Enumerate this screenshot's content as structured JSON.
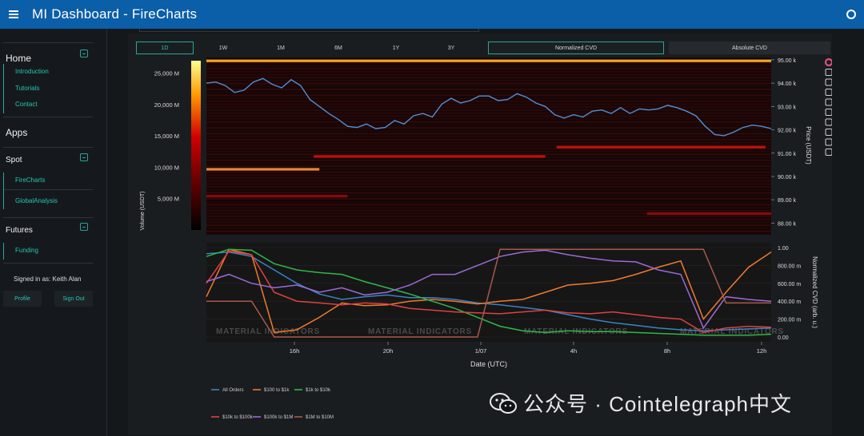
{
  "app": {
    "title": "MI Dashboard  -  FireCharts"
  },
  "sidebar": {
    "sections": [
      {
        "title": "Home",
        "items": [
          "Introduction",
          "Tutorials",
          "Contact"
        ]
      },
      {
        "title": "Apps",
        "items": []
      },
      {
        "title": "Spot",
        "items": [
          "FireCharts",
          "GlobalAnalysis"
        ]
      },
      {
        "title": "Futures",
        "items": [
          "Funding"
        ]
      }
    ],
    "signed_in": "Signed in as: Keith Alan",
    "profile_label": "Profile",
    "signout_label": "Sign Out"
  },
  "toolbar": {
    "ranges": [
      "1D",
      "1W",
      "1M",
      "6M",
      "1Y",
      "3Y"
    ],
    "active_range": "1D",
    "modes": [
      "Normalized CVD",
      "Absolute CVD"
    ],
    "active_mode": "Normalized CVD"
  },
  "chart_data": [
    {
      "type": "heatmap",
      "title": "",
      "colorbar": {
        "label": "Volume (USDT)",
        "ticks": [
          "25,000 M",
          "20,000 M",
          "15,000 M",
          "10,000 M",
          "5,000 M"
        ],
        "range": [
          0,
          27000
        ]
      },
      "ylabel": "Price (USDT)",
      "y_ticks": [
        "95.00 k",
        "94.00 k",
        "93.00 k",
        "92.00 k",
        "91.00 k",
        "90.00 k",
        "89.00 k",
        "88.00 k"
      ],
      "ylim": [
        87500,
        95100
      ],
      "walls": [
        {
          "price": 94950,
          "volume": 24000
        },
        {
          "price": 90300,
          "volume": 20000
        },
        {
          "price": 90850,
          "volume": 9000
        },
        {
          "price": 91250,
          "volume": 9000
        },
        {
          "price": 89150,
          "volume": 6000
        },
        {
          "price": 88400,
          "volume": 5000
        }
      ],
      "price_series": {
        "name": "",
        "color": "#4f8fd6",
        "values": [
          94000,
          94050,
          93900,
          93600,
          93700,
          94050,
          94200,
          93950,
          93800,
          94150,
          93900,
          93300,
          93000,
          92700,
          92450,
          92150,
          92100,
          92250,
          92050,
          92100,
          92400,
          92250,
          92600,
          92700,
          92550,
          93100,
          93350,
          93150,
          93250,
          93450,
          93450,
          93250,
          93300,
          93550,
          93400,
          93150,
          93000,
          92650,
          92500,
          92650,
          92550,
          92800,
          92850,
          92700,
          92950,
          92700,
          92900,
          92850,
          92900,
          93050,
          92950,
          92800,
          92600,
          92150,
          91800,
          91750,
          91900,
          92100,
          92200,
          92150,
          92050
        ]
      }
    },
    {
      "type": "line",
      "xlabel": "Date (UTC)",
      "ylabel": "Normalized CVD (arb. u.)",
      "x_ticks": [
        "16h",
        "20h",
        "1/07",
        "4h",
        "8h",
        "12h"
      ],
      "y_ticks": [
        "1.00",
        "800.00 m",
        "600.00 m",
        "400.00 m",
        "200.00 m",
        "0.00"
      ],
      "ylim": [
        0,
        1
      ],
      "watermark": "MATERIAL INDICATORS",
      "series": [
        {
          "name": "All Orders",
          "color": "#3b82c4",
          "values": [
            0.93,
            0.95,
            0.9,
            0.75,
            0.6,
            0.48,
            0.42,
            0.45,
            0.47,
            0.44,
            0.44,
            0.42,
            0.38,
            0.36,
            0.33,
            0.3,
            0.25,
            0.2,
            0.16,
            0.13,
            0.1,
            0.08,
            0.07,
            0.08,
            0.09,
            0.1
          ]
        },
        {
          "name": "$100 to $1k",
          "color": "#f07a2c",
          "values": [
            0.45,
            0.98,
            0.92,
            0.05,
            0.08,
            0.22,
            0.38,
            0.35,
            0.36,
            0.4,
            0.42,
            0.4,
            0.37,
            0.4,
            0.42,
            0.5,
            0.58,
            0.6,
            0.63,
            0.7,
            0.78,
            0.85,
            0.2,
            0.5,
            0.78,
            0.95
          ]
        },
        {
          "name": "$1k to $10k",
          "color": "#2eb84a",
          "values": [
            0.9,
            0.98,
            0.97,
            0.82,
            0.75,
            0.72,
            0.7,
            0.62,
            0.55,
            0.48,
            0.4,
            0.32,
            0.22,
            0.12,
            0.07,
            0.05,
            0.07,
            0.06,
            0.06,
            0.05,
            0.04,
            0.03,
            0.02,
            0.02,
            0.02,
            0.03
          ]
        },
        {
          "name": "$10k to $100k",
          "color": "#e04040",
          "values": [
            0.6,
            0.96,
            0.92,
            0.5,
            0.4,
            0.38,
            0.36,
            0.38,
            0.37,
            0.32,
            0.3,
            0.28,
            0.27,
            0.26,
            0.28,
            0.3,
            0.27,
            0.26,
            0.28,
            0.25,
            0.22,
            0.2,
            0.05,
            0.1,
            0.12,
            0.11
          ]
        },
        {
          "name": "$100k to $1M",
          "color": "#9b6ad8",
          "values": [
            0.62,
            0.7,
            0.6,
            0.55,
            0.58,
            0.5,
            0.55,
            0.47,
            0.5,
            0.58,
            0.7,
            0.7,
            0.8,
            0.9,
            0.95,
            0.97,
            0.92,
            0.88,
            0.85,
            0.84,
            0.75,
            0.7,
            0.1,
            0.45,
            0.42,
            0.4
          ]
        },
        {
          "name": "$1M to $10M",
          "color": "#a85a4a",
          "values": [
            0.4,
            0.4,
            0.4,
            0.0,
            0.0,
            0.0,
            0.0,
            0.0,
            0.0,
            0.0,
            0.0,
            0.0,
            0.0,
            0.98,
            0.98,
            0.98,
            0.98,
            0.98,
            0.98,
            0.98,
            0.98,
            0.98,
            0.98,
            0.38,
            0.38,
            0.38
          ]
        }
      ]
    }
  ],
  "toolbox_icons": [
    "color-wheel-icon",
    "pan-icon",
    "zoom-icon",
    "zoom-in-icon",
    "zoom-out-icon",
    "autoscale-icon",
    "reset-icon",
    "save-icon",
    "settings-icon",
    "camera-icon"
  ],
  "watermark": {
    "text": "公众号 · Cointelegraph中文"
  }
}
